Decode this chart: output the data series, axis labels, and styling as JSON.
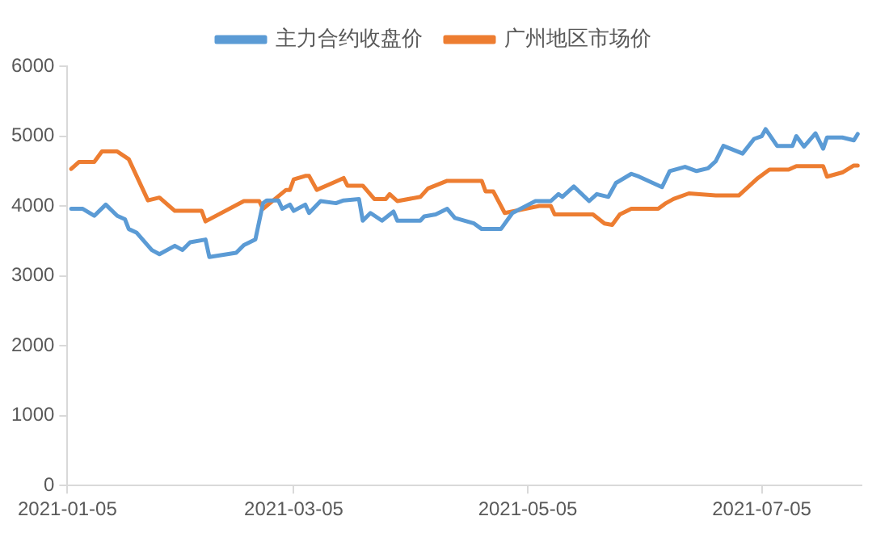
{
  "chart_data": {
    "type": "line",
    "xlim": [
      "2021-01-05",
      "2021-07-31"
    ],
    "xticks": [
      "2021-01-05",
      "2021-03-05",
      "2021-05-05",
      "2021-07-05"
    ],
    "ylim": [
      0,
      6000
    ],
    "yticks": [
      0,
      1000,
      2000,
      3000,
      4000,
      5000,
      6000
    ],
    "grid": false,
    "legend": "top",
    "marker": "none",
    "line_style": "solid",
    "series": [
      {
        "name": "主力合约收盘价",
        "color": "#5b9bd5",
        "x": [
          "2021-01-06",
          "2021-01-09",
          "2021-01-12",
          "2021-01-15",
          "2021-01-18",
          "2021-01-20",
          "2021-01-21",
          "2021-01-23",
          "2021-01-27",
          "2021-01-29",
          "2021-02-02",
          "2021-02-04",
          "2021-02-06",
          "2021-02-10",
          "2021-02-11",
          "2021-02-18",
          "2021-02-20",
          "2021-02-23",
          "2021-02-25",
          "2021-02-26",
          "2021-03-01",
          "2021-03-02",
          "2021-03-04",
          "2021-03-05",
          "2021-03-08",
          "2021-03-09",
          "2021-03-12",
          "2021-03-16",
          "2021-03-18",
          "2021-03-22",
          "2021-03-23",
          "2021-03-25",
          "2021-03-28",
          "2021-03-31",
          "2021-04-01",
          "2021-04-07",
          "2021-04-08",
          "2021-04-11",
          "2021-04-14",
          "2021-04-16",
          "2021-04-21",
          "2021-04-23",
          "2021-04-28",
          "2021-05-01",
          "2021-05-07",
          "2021-05-11",
          "2021-05-13",
          "2021-05-14",
          "2021-05-17",
          "2021-05-21",
          "2021-05-23",
          "2021-05-26",
          "2021-05-28",
          "2021-06-01",
          "2021-06-03",
          "2021-06-09",
          "2021-06-11",
          "2021-06-15",
          "2021-06-18",
          "2021-06-21",
          "2021-06-23",
          "2021-06-25",
          "2021-06-30",
          "2021-07-03",
          "2021-07-05",
          "2021-07-06",
          "2021-07-09",
          "2021-07-13",
          "2021-07-14",
          "2021-07-16",
          "2021-07-19",
          "2021-07-21",
          "2021-07-22",
          "2021-07-26",
          "2021-07-29",
          "2021-07-30"
        ],
        "values": [
          3960,
          3960,
          3860,
          4020,
          3860,
          3810,
          3670,
          3620,
          3370,
          3310,
          3430,
          3370,
          3480,
          3520,
          3270,
          3330,
          3440,
          3520,
          4040,
          4080,
          4080,
          3960,
          4020,
          3930,
          4020,
          3900,
          4070,
          4040,
          4080,
          4100,
          3790,
          3900,
          3790,
          3920,
          3790,
          3790,
          3850,
          3880,
          3960,
          3830,
          3750,
          3670,
          3670,
          3900,
          4070,
          4070,
          4170,
          4130,
          4280,
          4070,
          4170,
          4130,
          4330,
          4460,
          4420,
          4270,
          4500,
          4560,
          4500,
          4540,
          4640,
          4860,
          4750,
          4960,
          5000,
          5100,
          4860,
          4860,
          5000,
          4850,
          5040,
          4820,
          4980,
          4980,
          4940,
          5030
        ]
      },
      {
        "name": "广州地区市场价",
        "color": "#ed7d31",
        "x": [
          "2021-01-06",
          "2021-01-08",
          "2021-01-12",
          "2021-01-14",
          "2021-01-18",
          "2021-01-21",
          "2021-01-26",
          "2021-01-29",
          "2021-02-02",
          "2021-02-09",
          "2021-02-10",
          "2021-02-20",
          "2021-02-24",
          "2021-02-25",
          "2021-03-03",
          "2021-03-04",
          "2021-03-05",
          "2021-03-08",
          "2021-03-09",
          "2021-03-11",
          "2021-03-16",
          "2021-03-18",
          "2021-03-19",
          "2021-03-23",
          "2021-03-26",
          "2021-03-29",
          "2021-03-30",
          "2021-04-01",
          "2021-04-07",
          "2021-04-09",
          "2021-04-14",
          "2021-04-23",
          "2021-04-24",
          "2021-04-26",
          "2021-04-29",
          "2021-05-08",
          "2021-05-11",
          "2021-05-12",
          "2021-05-22",
          "2021-05-25",
          "2021-05-27",
          "2021-05-29",
          "2021-06-01",
          "2021-06-08",
          "2021-06-10",
          "2021-06-12",
          "2021-06-16",
          "2021-06-23",
          "2021-06-29",
          "2021-07-04",
          "2021-07-07",
          "2021-07-12",
          "2021-07-14",
          "2021-07-21",
          "2021-07-22",
          "2021-07-26",
          "2021-07-29",
          "2021-07-30"
        ],
        "values": [
          4530,
          4630,
          4630,
          4780,
          4780,
          4670,
          4080,
          4120,
          3930,
          3930,
          3780,
          4070,
          4070,
          3960,
          4230,
          4230,
          4380,
          4430,
          4430,
          4230,
          4350,
          4400,
          4290,
          4290,
          4100,
          4100,
          4170,
          4070,
          4130,
          4250,
          4360,
          4360,
          4210,
          4210,
          3900,
          4000,
          4000,
          3880,
          3880,
          3750,
          3730,
          3880,
          3960,
          3960,
          4040,
          4100,
          4180,
          4150,
          4150,
          4400,
          4520,
          4520,
          4570,
          4570,
          4420,
          4480,
          4580,
          4580
        ]
      }
    ]
  }
}
